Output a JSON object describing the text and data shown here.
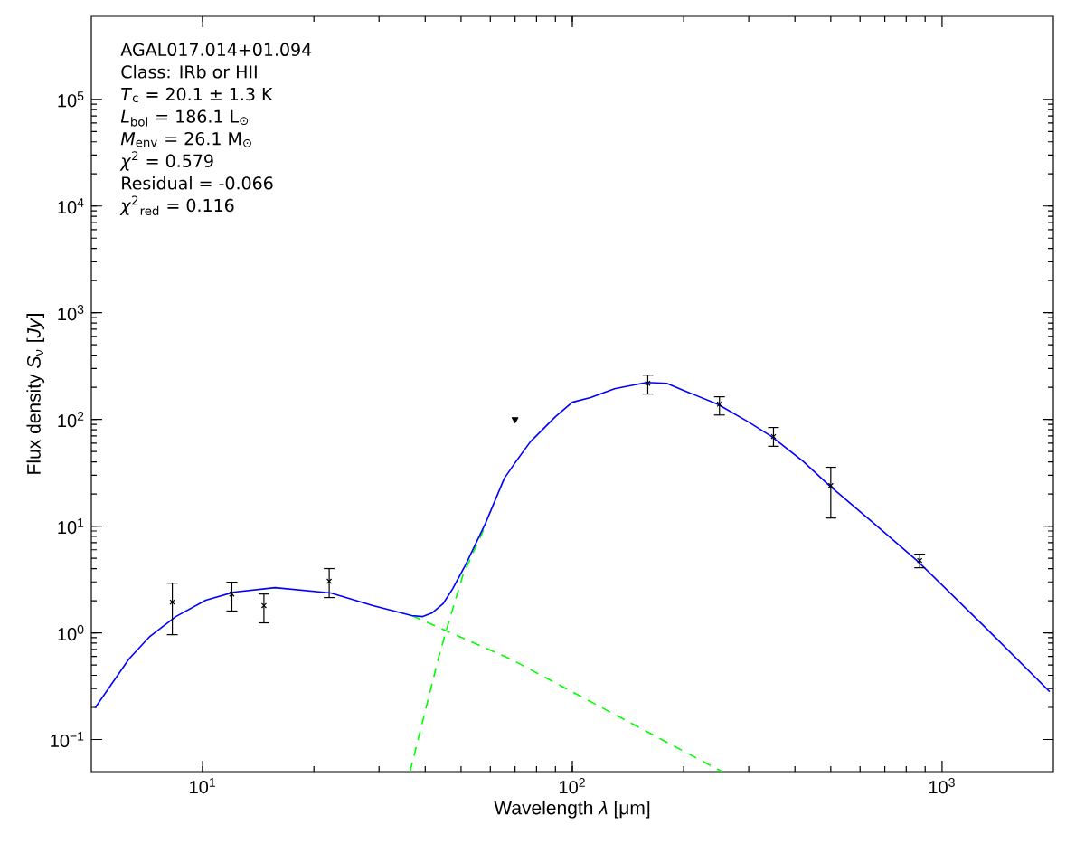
{
  "chart_data": {
    "type": "scatter",
    "xlabel": "Wavelength *λ* [μm]",
    "ylabel": "Flux density *S*$_{ν}$ [*Jy*]",
    "log": "xy",
    "xlim": [
      5,
      2000
    ],
    "ylim": [
      0.05,
      600000
    ],
    "xticks": [
      {
        "value": 10,
        "label": "10$^{1}$"
      },
      {
        "value": 100,
        "label": "10$^{2}$"
      },
      {
        "value": 1000,
        "label": "10$^{3}$"
      }
    ],
    "yticks": [
      {
        "value": 0.1,
        "label": "10$^{−1}$"
      },
      {
        "value": 1,
        "label": "10$^{0}$"
      },
      {
        "value": 10,
        "label": "10$^{1}$"
      },
      {
        "value": 100,
        "label": "10$^{2}$"
      },
      {
        "value": 1000,
        "label": "10$^{3}$"
      },
      {
        "value": 10000,
        "label": "10$^{4}$"
      },
      {
        "value": 100000,
        "label": "10$^{5}$"
      }
    ],
    "annotations": [
      "AGAL017.014+01.094",
      "Class: IRb or HII",
      "*T*$_{c}$ = 20.1 ± 1.3 K",
      "*L*$_{bol}$ = 186.1 L$_{⊙}$",
      "*M*$_{env}$ = 26.1 M$_{⊙}$",
      "*χ*$^{2}$ = 0.579",
      "Residual = -0.066",
      "*χ*$^{2}$$_{red}$ = 0.116"
    ],
    "series": [
      {
        "type": "line",
        "color": "#00ff00",
        "line_style": "dashed",
        "marker": "none",
        "x": [
          36.4,
          43.5,
          45.7,
          50.6,
          57.5
        ],
        "values": [
          0.05,
          0.59,
          1.08,
          3.48,
          9.2
        ]
      },
      {
        "type": "line",
        "color": "#00ff00",
        "line_style": "dashed",
        "marker": "none",
        "x": [
          36.8,
          45.7,
          68.1,
          254
        ],
        "values": [
          1.45,
          1.04,
          0.568,
          0.05
        ]
      },
      {
        "type": "line",
        "color": "#0000ff",
        "line_style": "solid",
        "marker": "none",
        "x": [
          5.12,
          6.32,
          7.2,
          8.46,
          10.2,
          12.2,
          15.7,
          22.2,
          28.9,
          36.8,
          39.4,
          41.8,
          44.7,
          47.5,
          51.4,
          58.2,
          65.5,
          70,
          76.9,
          90,
          100,
          112,
          130,
          159,
          180,
          203,
          247,
          300,
          346,
          420,
          492,
          650,
          855,
          1300,
          1954
        ],
        "values": [
          0.198,
          0.568,
          0.925,
          1.42,
          2.02,
          2.41,
          2.65,
          2.36,
          1.8,
          1.45,
          1.42,
          1.54,
          1.87,
          2.6,
          4.32,
          10.6,
          28.1,
          39.2,
          61.4,
          106,
          145,
          160,
          194,
          222,
          218,
          183,
          139,
          94.3,
          69,
          40.7,
          24.5,
          10.8,
          4.76,
          1.15,
          0.281
        ]
      },
      {
        "color": "#000000",
        "marker": "cross",
        "x": [
          8.28,
          12,
          14.65,
          22,
          160,
          250,
          350,
          500,
          870
        ],
        "values": [
          1.94,
          2.31,
          1.8,
          3.04,
          218,
          139,
          69,
          24,
          4.76
        ],
        "errors": [
          [
            0.96,
            2.92
          ],
          [
            1.6,
            2.98
          ],
          [
            1.24,
            2.31
          ],
          [
            2.14,
            4.0
          ],
          [
            173,
            260
          ],
          [
            110,
            163
          ],
          [
            56,
            84
          ],
          [
            11.9,
            35.6
          ],
          [
            4.07,
            5.46
          ]
        ]
      },
      {
        "color": "#000000",
        "marker": "triangle",
        "x": [
          70
        ],
        "values": [
          100
        ]
      }
    ]
  }
}
